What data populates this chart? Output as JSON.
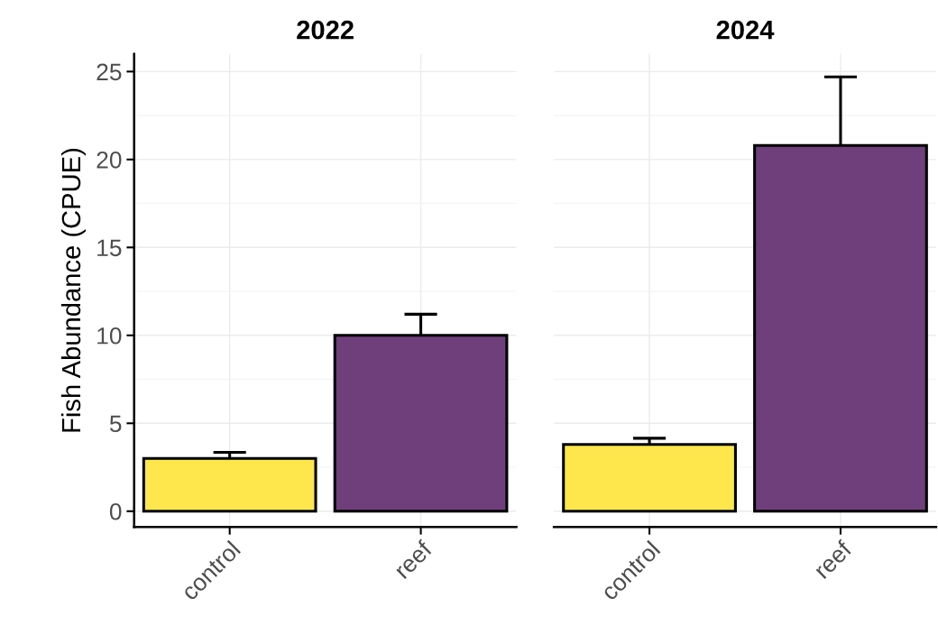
{
  "chart_data": [
    {
      "type": "bar",
      "title": "2022",
      "ylabel": "Fish Abundance (CPUE)",
      "categories": [
        "control",
        "reef"
      ],
      "values": [
        3.0,
        10.0
      ],
      "errors": [
        0.35,
        1.2
      ],
      "colors": [
        "#fde74c",
        "#6e3f7a"
      ],
      "ylim": [
        -0.9,
        26
      ],
      "yticks": [
        0,
        5,
        10,
        15,
        20,
        25
      ],
      "grid": true
    },
    {
      "type": "bar",
      "title": "2024",
      "categories": [
        "control",
        "reef"
      ],
      "values": [
        3.8,
        20.8
      ],
      "errors": [
        0.35,
        3.9
      ],
      "colors": [
        "#fde74c",
        "#6e3f7a"
      ],
      "ylim": [
        -0.9,
        26
      ],
      "yticks": [
        0,
        5,
        10,
        15,
        20,
        25
      ],
      "grid": true,
      "tick_labels": "x"
    }
  ]
}
